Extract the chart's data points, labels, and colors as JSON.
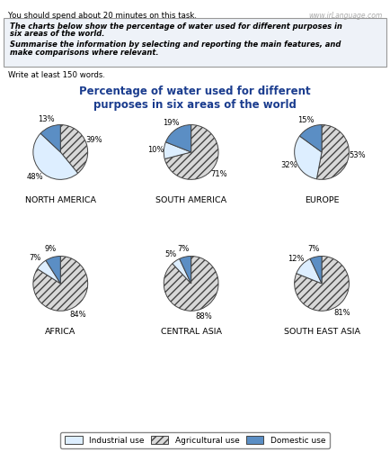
{
  "title": "Percentage of water used for different\npurposes in six areas of the world",
  "title_color": "#1a3c8e",
  "header_line1": "The charts below show the percentage of water used for different purposes in",
  "header_line2": "six areas of the world.",
  "header_line3": "Summarise the information by selecting and reporting the main features, and",
  "header_line4": "make comparisons where relevant.",
  "subtext": "Write at least 150 words.",
  "top_note": "You should spend about 20 minutes on this task.",
  "watermark": "www.irLanguage.com",
  "regions": [
    {
      "name": "NORTH AMERICA",
      "industrial": 48,
      "agricultural": 39,
      "domestic": 13
    },
    {
      "name": "SOUTH AMERICA",
      "industrial": 10,
      "agricultural": 71,
      "domestic": 19
    },
    {
      "name": "EUROPE",
      "industrial": 32,
      "agricultural": 53,
      "domestic": 15
    },
    {
      "name": "AFRICA",
      "industrial": 7,
      "agricultural": 84,
      "domestic": 9
    },
    {
      "name": "CENTRAL ASIA",
      "industrial": 5,
      "agricultural": 88,
      "domestic": 7
    },
    {
      "name": "SOUTH EAST ASIA",
      "industrial": 12,
      "agricultural": 81,
      "domestic": 7
    }
  ],
  "ind_color": "#ddeeff",
  "agr_color": "#dddddd",
  "dom_color": "#5b8ec4",
  "legend_labels": [
    "Industrial use",
    "Agricultural use",
    "Domestic use"
  ],
  "bg_color": "#ffffff",
  "box_bg": "#eef2f8",
  "label_fontsize": 6.0,
  "region_fontsize": 6.8,
  "title_fontsize": 8.5
}
